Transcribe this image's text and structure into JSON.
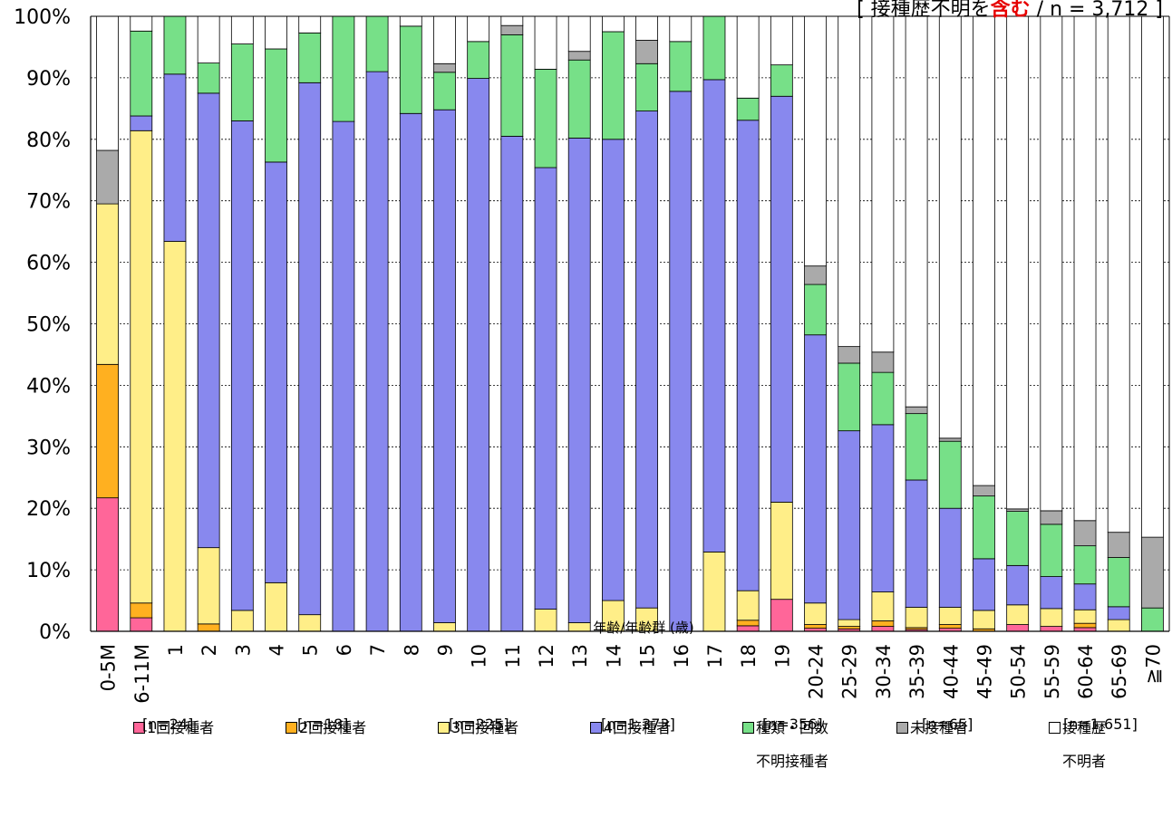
{
  "note": {
    "prefix": "[ 接種歴不明含む",
    "highlight": "含む",
    "text_before": "[ 接種歴不明を",
    "text_after": " / n = 3,712 ]"
  },
  "chart_data": {
    "type": "bar",
    "stacked": true,
    "xlabel": "年齢/年齢群 (歳)",
    "ylabel": "",
    "ylim": [
      0,
      100
    ],
    "yticks": [
      "0%",
      "10%",
      "20%",
      "30%",
      "40%",
      "50%",
      "60%",
      "70%",
      "80%",
      "90%",
      "100%"
    ],
    "grid": true,
    "categories": [
      "0-5M",
      "6-11M",
      "1",
      "2",
      "3",
      "4",
      "5",
      "6",
      "7",
      "8",
      "9",
      "10",
      "11",
      "12",
      "13",
      "14",
      "15",
      "16",
      "17",
      "18",
      "19",
      "20-24",
      "25-29",
      "30-34",
      "35-39",
      "40-44",
      "45-49",
      "50-54",
      "55-59",
      "60-64",
      "65-69",
      "≧70"
    ],
    "series": [
      {
        "name": "1回接種者",
        "color": "#ff6699",
        "values": [
          21.7,
          2.2,
          0,
          0,
          0,
          0,
          0,
          0,
          0,
          0,
          0,
          0,
          0,
          0,
          0,
          0,
          0,
          0,
          0,
          0.9,
          5.2,
          0.5,
          0.4,
          0.8,
          0.3,
          0.5,
          0,
          1.1,
          0.8,
          0.6,
          0,
          0
        ]
      },
      {
        "name": "2回接種者",
        "color": "#ffb020",
        "values": [
          21.7,
          2.4,
          0,
          1.2,
          0,
          0,
          0,
          0,
          0,
          0,
          0,
          0,
          0,
          0,
          0,
          0,
          0,
          0,
          0,
          0.9,
          0,
          0.6,
          0.4,
          0.9,
          0.3,
          0.6,
          0.4,
          0,
          0,
          0.7,
          0,
          0
        ]
      },
      {
        "name": "3回接種者",
        "color": "#ffee88",
        "values": [
          26.1,
          76.8,
          63.4,
          12.4,
          3.4,
          7.9,
          2.7,
          0,
          0,
          0,
          1.4,
          0,
          0,
          3.6,
          1.4,
          5,
          3.8,
          0,
          12.9,
          4.8,
          15.8,
          3.5,
          1.1,
          4.7,
          3.3,
          2.8,
          3,
          3.2,
          2.9,
          2.2,
          1.9,
          0
        ]
      },
      {
        "name": "4回接種者",
        "color": "#8888ee",
        "values": [
          0,
          2.4,
          27.2,
          73.9,
          79.6,
          68.4,
          86.5,
          82.9,
          91,
          84.2,
          83.4,
          89.9,
          80.5,
          71.8,
          78.8,
          75,
          80.8,
          87.8,
          76.8,
          76.5,
          66,
          43.6,
          30.7,
          27.2,
          20.7,
          16.1,
          8.4,
          6.4,
          5.2,
          4.2,
          2.1,
          0
        ]
      },
      {
        "name": "種類・回数",
        "name_line2": "不明接種者",
        "color": "#77e088",
        "values": [
          0,
          13.8,
          9.4,
          4.9,
          12.5,
          18.4,
          8.1,
          17.1,
          9,
          14.2,
          6.1,
          6,
          16.5,
          16,
          12.7,
          17.5,
          7.7,
          8.1,
          10.3,
          3.6,
          5.1,
          8.2,
          11,
          8.5,
          10.8,
          10.9,
          10.2,
          8.8,
          8.5,
          6.2,
          8,
          3.8
        ]
      },
      {
        "name": "未接種者",
        "color": "#aaaaaa",
        "values": [
          8.7,
          0,
          0,
          0,
          0,
          0,
          0,
          0,
          0,
          0,
          1.4,
          0,
          1.5,
          0,
          1.4,
          0,
          3.8,
          0,
          0,
          0,
          0,
          3,
          2.7,
          3.3,
          1.1,
          0.5,
          1.7,
          0.4,
          2.2,
          4.1,
          4.1,
          11.5
        ]
      },
      {
        "name": "接種歴",
        "name_line2": "不明者",
        "color": "#ffffff",
        "values": [
          21.8,
          2.4,
          0,
          7.6,
          4.5,
          5.3,
          2.7,
          0,
          0,
          1.6,
          7.7,
          4.1,
          1.5,
          8.6,
          5.7,
          2.5,
          3.9,
          4.1,
          0,
          13.3,
          7.9,
          40.6,
          53.7,
          54.6,
          63.5,
          68.6,
          76.3,
          80.1,
          80.4,
          82,
          83.9,
          84.7
        ]
      }
    ]
  },
  "legend_counts": [
    "[n=24]",
    "[n=18]",
    "[n=225]",
    "[n=1,373]",
    "[n=356]",
    "[n=65]",
    "[n=1,651]"
  ]
}
